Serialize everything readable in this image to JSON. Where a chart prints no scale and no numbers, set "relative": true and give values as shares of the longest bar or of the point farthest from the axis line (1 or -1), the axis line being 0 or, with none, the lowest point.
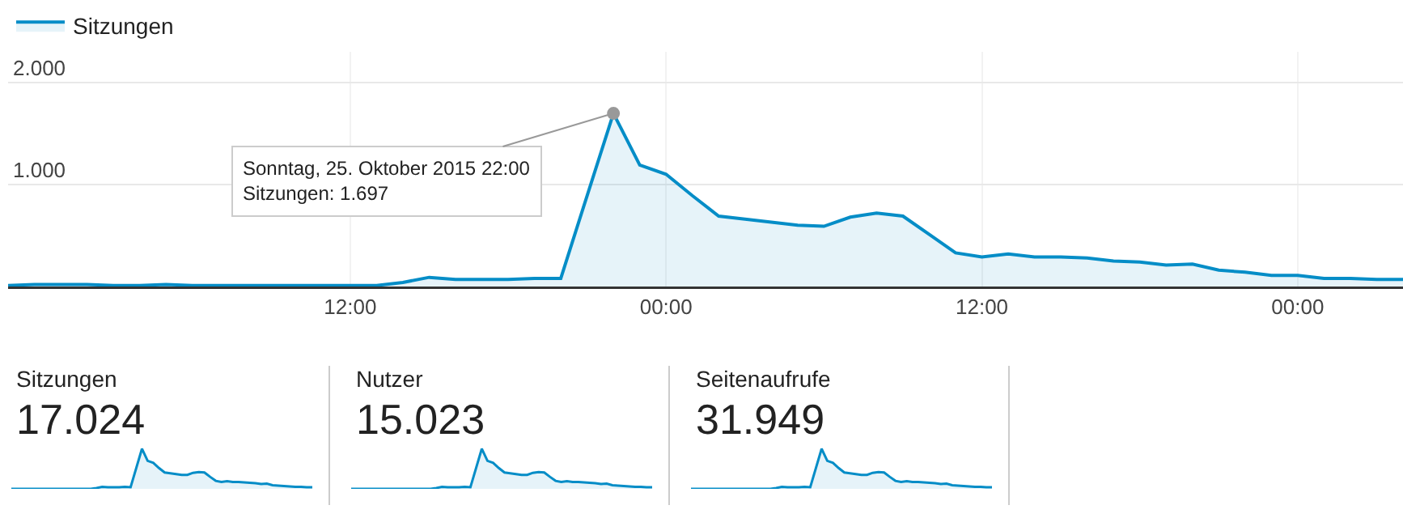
{
  "chart_data": [
    {
      "type": "area",
      "x": [
        "2015-10-24T23:00",
        "2015-10-25T00:00",
        "2015-10-25T01:00",
        "2015-10-25T02:00",
        "2015-10-25T03:00",
        "2015-10-25T04:00",
        "2015-10-25T05:00",
        "2015-10-25T06:00",
        "2015-10-25T07:00",
        "2015-10-25T08:00",
        "2015-10-25T09:00",
        "2015-10-25T10:00",
        "2015-10-25T11:00",
        "2015-10-25T12:00",
        "2015-10-25T13:00",
        "2015-10-25T14:00",
        "2015-10-25T15:00",
        "2015-10-25T16:00",
        "2015-10-25T17:00",
        "2015-10-25T18:00",
        "2015-10-25T19:00",
        "2015-10-25T20:00",
        "2015-10-25T21:00",
        "2015-10-25T22:00",
        "2015-10-25T23:00",
        "2015-10-26T00:00",
        "2015-10-26T01:00",
        "2015-10-26T02:00",
        "2015-10-26T03:00",
        "2015-10-26T04:00",
        "2015-10-26T05:00",
        "2015-10-26T06:00",
        "2015-10-26T07:00",
        "2015-10-26T08:00",
        "2015-10-26T09:00",
        "2015-10-26T10:00",
        "2015-10-26T11:00",
        "2015-10-26T12:00",
        "2015-10-26T13:00",
        "2015-10-26T14:00",
        "2015-10-26T15:00",
        "2015-10-26T16:00",
        "2015-10-26T17:00",
        "2015-10-26T18:00",
        "2015-10-26T19:00",
        "2015-10-26T20:00",
        "2015-10-26T21:00",
        "2015-10-26T22:00",
        "2015-10-26T23:00",
        "2015-10-27T00:00",
        "2015-10-27T01:00",
        "2015-10-27T02:00",
        "2015-10-27T03:00",
        "2015-10-27T04:00"
      ],
      "series": [
        {
          "name": "Sitzungen",
          "color": "#058dc7",
          "values": [
            10,
            20,
            20,
            20,
            10,
            10,
            20,
            10,
            10,
            10,
            10,
            10,
            10,
            10,
            10,
            40,
            90,
            70,
            70,
            70,
            80,
            80,
            890,
            1697,
            1190,
            1100,
            890,
            690,
            660,
            630,
            600,
            590,
            680,
            720,
            690,
            510,
            330,
            290,
            320,
            290,
            290,
            280,
            250,
            240,
            210,
            220,
            160,
            140,
            110,
            110,
            80,
            80,
            70,
            70
          ]
        }
      ],
      "xlim": [
        "2015-10-24T23:00",
        "2015-10-27T04:00"
      ],
      "ylim": [
        0,
        2300
      ],
      "xticks": [
        {
          "value": "2015-10-25T12:00",
          "label": "12:00"
        },
        {
          "value": "2015-10-26T00:00",
          "label": "00:00"
        },
        {
          "value": "2015-10-26T12:00",
          "label": "12:00"
        },
        {
          "value": "2015-10-27T00:00",
          "label": "00:00"
        }
      ],
      "yticks": [
        {
          "value": 1000,
          "label": "1.000"
        },
        {
          "value": 2000,
          "label": "2.000"
        }
      ],
      "grid": true,
      "legend": "top left",
      "annotations": [
        {
          "text": "Sonntag, 25. Oktober 2015 22:00\nSitzungen: 1.697",
          "x": "2015-10-25T22:00",
          "y": 1697
        }
      ]
    },
    {
      "type": "area",
      "title": "Sitzungen",
      "subtitle": "17.024",
      "relative": true,
      "series": [
        {
          "color": "#058dc7",
          "values": [
            0,
            0,
            0,
            0,
            0,
            0,
            0,
            0,
            0,
            0,
            0,
            0,
            0,
            0,
            0,
            0.02,
            0.05,
            0.04,
            0.04,
            0.04,
            0.05,
            0.04,
            0.52,
            1,
            0.7,
            0.65,
            0.52,
            0.41,
            0.39,
            0.37,
            0.35,
            0.35,
            0.4,
            0.42,
            0.41,
            0.3,
            0.2,
            0.17,
            0.19,
            0.17,
            0.17,
            0.16,
            0.15,
            0.14,
            0.12,
            0.13,
            0.09,
            0.08,
            0.07,
            0.06,
            0.05,
            0.05,
            0.04,
            0.04
          ]
        }
      ],
      "categories": [
        null,
        null,
        null,
        null,
        null,
        null,
        null,
        null,
        null,
        null,
        null,
        null,
        null,
        null,
        null,
        null,
        null,
        null,
        null,
        null,
        null,
        null,
        null,
        null,
        null,
        null,
        null,
        null,
        null,
        null,
        null,
        null,
        null,
        null,
        null,
        null,
        null,
        null,
        null,
        null,
        null,
        null,
        null,
        null,
        null,
        null,
        null,
        null,
        null,
        null,
        null,
        null,
        null,
        null
      ]
    },
    {
      "type": "area",
      "title": "Nutzer",
      "subtitle": "15.023",
      "relative": true,
      "series": [
        {
          "color": "#058dc7",
          "values": [
            0,
            0,
            0,
            0,
            0,
            0,
            0,
            0,
            0,
            0,
            0,
            0,
            0,
            0,
            0,
            0.02,
            0.05,
            0.04,
            0.04,
            0.04,
            0.05,
            0.04,
            0.52,
            1,
            0.7,
            0.65,
            0.52,
            0.41,
            0.39,
            0.37,
            0.35,
            0.35,
            0.4,
            0.42,
            0.41,
            0.3,
            0.2,
            0.17,
            0.19,
            0.17,
            0.17,
            0.16,
            0.15,
            0.14,
            0.12,
            0.13,
            0.09,
            0.08,
            0.07,
            0.06,
            0.05,
            0.05,
            0.04,
            0.04
          ]
        }
      ],
      "categories": [
        null,
        null,
        null,
        null,
        null,
        null,
        null,
        null,
        null,
        null,
        null,
        null,
        null,
        null,
        null,
        null,
        null,
        null,
        null,
        null,
        null,
        null,
        null,
        null,
        null,
        null,
        null,
        null,
        null,
        null,
        null,
        null,
        null,
        null,
        null,
        null,
        null,
        null,
        null,
        null,
        null,
        null,
        null,
        null,
        null,
        null,
        null,
        null,
        null,
        null,
        null,
        null,
        null,
        null
      ]
    },
    {
      "type": "area",
      "title": "Seitenaufrufe",
      "subtitle": "31.949",
      "relative": true,
      "series": [
        {
          "color": "#058dc7",
          "values": [
            0,
            0,
            0,
            0,
            0,
            0,
            0,
            0,
            0,
            0,
            0,
            0,
            0,
            0,
            0,
            0.02,
            0.05,
            0.04,
            0.04,
            0.04,
            0.05,
            0.04,
            0.52,
            1,
            0.7,
            0.65,
            0.52,
            0.41,
            0.39,
            0.37,
            0.35,
            0.35,
            0.4,
            0.42,
            0.41,
            0.3,
            0.2,
            0.17,
            0.19,
            0.17,
            0.17,
            0.16,
            0.15,
            0.14,
            0.12,
            0.13,
            0.09,
            0.08,
            0.07,
            0.06,
            0.05,
            0.05,
            0.04,
            0.04
          ]
        }
      ],
      "categories": [
        null,
        null,
        null,
        null,
        null,
        null,
        null,
        null,
        null,
        null,
        null,
        null,
        null,
        null,
        null,
        null,
        null,
        null,
        null,
        null,
        null,
        null,
        null,
        null,
        null,
        null,
        null,
        null,
        null,
        null,
        null,
        null,
        null,
        null,
        null,
        null,
        null,
        null,
        null,
        null,
        null,
        null,
        null,
        null,
        null,
        null,
        null,
        null,
        null,
        null,
        null,
        null,
        null,
        null
      ]
    }
  ]
}
